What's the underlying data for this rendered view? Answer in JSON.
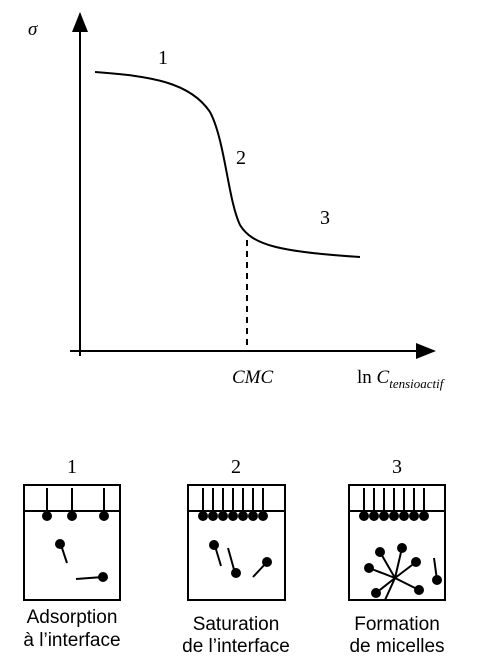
{
  "graph": {
    "y_label": "σ",
    "x_label_main": "ln",
    "x_label_var": "C",
    "x_label_sub": "tensioactif",
    "marker": "CMC",
    "region_labels": [
      "1",
      "2",
      "3"
    ]
  },
  "panels": [
    {
      "number": "1",
      "caption": [
        "Adsorption",
        "à l’interface"
      ]
    },
    {
      "number": "2",
      "caption": [
        "Saturation",
        "de l’interface"
      ]
    },
    {
      "number": "3",
      "caption": [
        "Formation",
        "de micelles"
      ]
    }
  ]
}
